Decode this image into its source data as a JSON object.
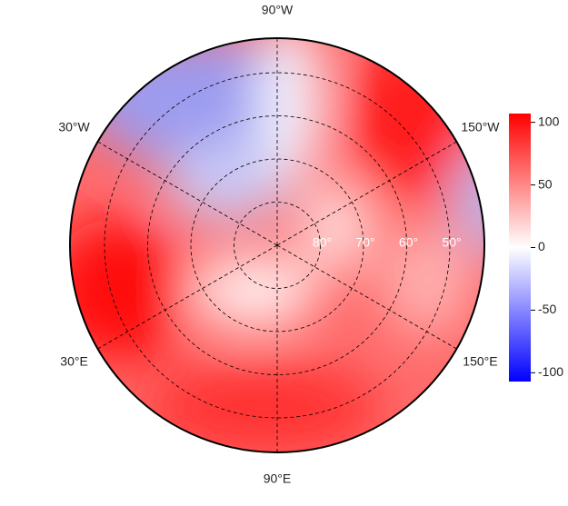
{
  "map": {
    "meridians": [
      {
        "value": -90,
        "label": "90°W"
      },
      {
        "value": -30,
        "label": "30°W"
      },
      {
        "value": -150,
        "label": "150°W"
      },
      {
        "value": 30,
        "label": "30°E"
      },
      {
        "value": 150,
        "label": "150°E"
      },
      {
        "value": 90,
        "label": "90°E"
      }
    ],
    "parallels": [
      {
        "value": 80,
        "label": "80°"
      },
      {
        "value": 70,
        "label": "70°"
      },
      {
        "value": 60,
        "label": "60°"
      },
      {
        "value": 50,
        "label": "50°"
      }
    ]
  },
  "colorbar": {
    "lim": [
      -107,
      107
    ],
    "ticks": [
      100,
      50,
      0,
      -50,
      -100
    ],
    "colors": [
      "#0000ff",
      "#ffffff",
      "#ff0000"
    ]
  }
}
